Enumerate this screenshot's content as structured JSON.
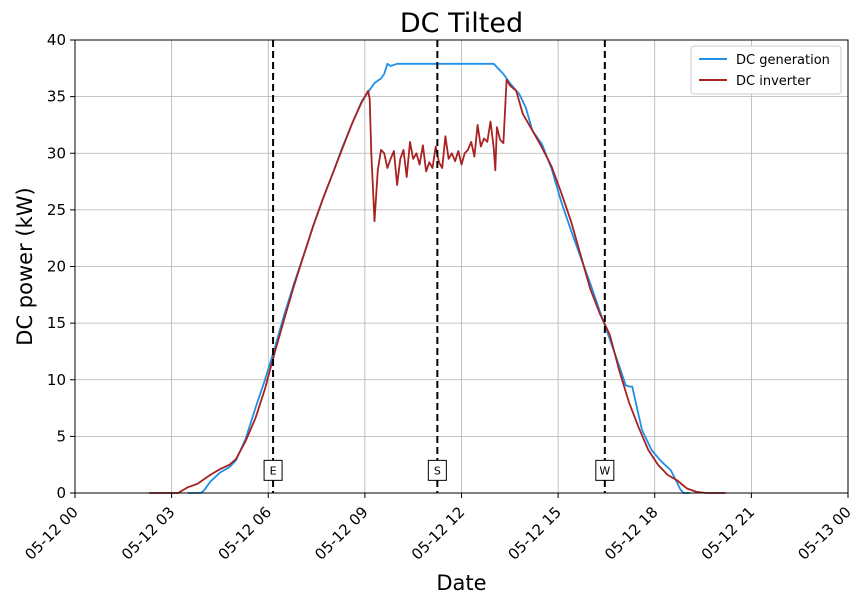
{
  "chart_data": {
    "type": "line",
    "title": "DC Tilted",
    "xlabel": "Date",
    "ylabel": "DC power (kW)",
    "xlim": [
      0,
      24
    ],
    "ylim": [
      0,
      40
    ],
    "x_ticks": [
      {
        "value": 0,
        "label": "05-12 00"
      },
      {
        "value": 3,
        "label": "05-12 03"
      },
      {
        "value": 6,
        "label": "05-12 06"
      },
      {
        "value": 9,
        "label": "05-12 09"
      },
      {
        "value": 12,
        "label": "05-12 12"
      },
      {
        "value": 15,
        "label": "05-12 15"
      },
      {
        "value": 18,
        "label": "05-12 18"
      },
      {
        "value": 21,
        "label": "05-12 21"
      },
      {
        "value": 24,
        "label": "05-13 00"
      }
    ],
    "y_ticks": [
      0,
      5,
      10,
      15,
      20,
      25,
      30,
      35,
      40
    ],
    "grid": true,
    "legend_position": "top-right",
    "series": [
      {
        "name": "DC generation",
        "color": "#1f8fe8",
        "x": [
          3.5,
          3.9,
          4.0,
          4.2,
          4.5,
          4.8,
          5.0,
          5.3,
          5.6,
          5.9,
          6.2,
          6.5,
          6.8,
          7.1,
          7.4,
          7.7,
          8.0,
          8.3,
          8.6,
          8.9,
          9.1,
          9.3,
          9.5,
          9.6,
          9.7,
          9.8,
          10.0,
          11.0,
          12.0,
          13.0,
          13.3,
          13.5,
          13.8,
          14.0,
          14.2,
          14.5,
          14.8,
          15.1,
          15.4,
          15.7,
          16.0,
          16.3,
          16.6,
          16.9,
          17.1,
          17.2,
          17.3,
          17.6,
          17.9,
          18.2,
          18.5,
          18.8,
          18.9,
          19.1
        ],
        "y": [
          0,
          0,
          0.2,
          1.0,
          1.8,
          2.3,
          2.9,
          4.8,
          7.5,
          10.0,
          12.8,
          15.8,
          18.5,
          21.0,
          23.6,
          26.0,
          28.2,
          30.5,
          32.6,
          34.6,
          35.4,
          36.2,
          36.6,
          37.0,
          37.9,
          37.7,
          37.9,
          37.9,
          37.9,
          37.9,
          37.0,
          36.2,
          35.2,
          34.0,
          32.0,
          30.8,
          28.6,
          25.7,
          23.2,
          20.8,
          18.5,
          16.0,
          13.6,
          11.2,
          9.5,
          9.4,
          9.4,
          5.6,
          3.8,
          2.8,
          2.0,
          0.3,
          0,
          0
        ]
      },
      {
        "name": "DC inverter",
        "color": "#a82222",
        "x": [
          2.3,
          3.0,
          3.2,
          3.5,
          3.8,
          4.0,
          4.2,
          4.5,
          4.8,
          5.0,
          5.3,
          5.6,
          5.9,
          6.2,
          6.5,
          6.8,
          7.1,
          7.4,
          7.7,
          8.0,
          8.3,
          8.6,
          8.9,
          9.1,
          9.15,
          9.2,
          9.3,
          9.4,
          9.5,
          9.6,
          9.7,
          9.8,
          9.9,
          10.0,
          10.1,
          10.2,
          10.3,
          10.4,
          10.5,
          10.6,
          10.7,
          10.8,
          10.9,
          11.0,
          11.1,
          11.2,
          11.3,
          11.4,
          11.5,
          11.6,
          11.7,
          11.8,
          11.9,
          12.0,
          12.1,
          12.2,
          12.3,
          12.4,
          12.5,
          12.6,
          12.7,
          12.8,
          12.9,
          13.0,
          13.05,
          13.1,
          13.2,
          13.3,
          13.4,
          13.5,
          13.7,
          13.9,
          14.2,
          14.5,
          14.8,
          15.1,
          15.4,
          15.7,
          16.0,
          16.3,
          16.6,
          16.9,
          17.2,
          17.5,
          17.8,
          18.1,
          18.4,
          18.7,
          19.0,
          19.3,
          19.6,
          19.9,
          20.2
        ],
        "y": [
          0,
          0,
          0,
          0.5,
          0.8,
          1.2,
          1.6,
          2.1,
          2.5,
          3.0,
          4.6,
          6.6,
          9.2,
          12.4,
          15.4,
          18.3,
          21.0,
          23.6,
          26.0,
          28.2,
          30.4,
          32.6,
          34.5,
          35.5,
          34.8,
          30.0,
          24.0,
          28.5,
          30.3,
          30.0,
          28.7,
          29.5,
          30.2,
          27.2,
          29.5,
          30.3,
          27.9,
          31.0,
          29.5,
          30.0,
          29.0,
          30.7,
          28.4,
          29.2,
          28.7,
          30.6,
          29.2,
          28.7,
          31.5,
          29.5,
          30.0,
          29.3,
          30.2,
          29.0,
          30.0,
          30.3,
          31.0,
          29.7,
          32.5,
          30.6,
          31.3,
          31.0,
          32.8,
          30.5,
          28.5,
          32.3,
          31.2,
          30.9,
          36.5,
          36.0,
          35.5,
          33.5,
          32.0,
          30.5,
          28.8,
          26.5,
          24.0,
          21.0,
          18.0,
          15.8,
          14.0,
          10.8,
          8.0,
          5.8,
          3.8,
          2.5,
          1.6,
          1.1,
          0.4,
          0.1,
          0,
          0,
          0
        ]
      }
    ],
    "vertical_markers": [
      {
        "x": 6.15,
        "label": "E"
      },
      {
        "x": 11.25,
        "label": "S"
      },
      {
        "x": 16.45,
        "label": "W"
      }
    ],
    "marker_label_y": 2
  }
}
